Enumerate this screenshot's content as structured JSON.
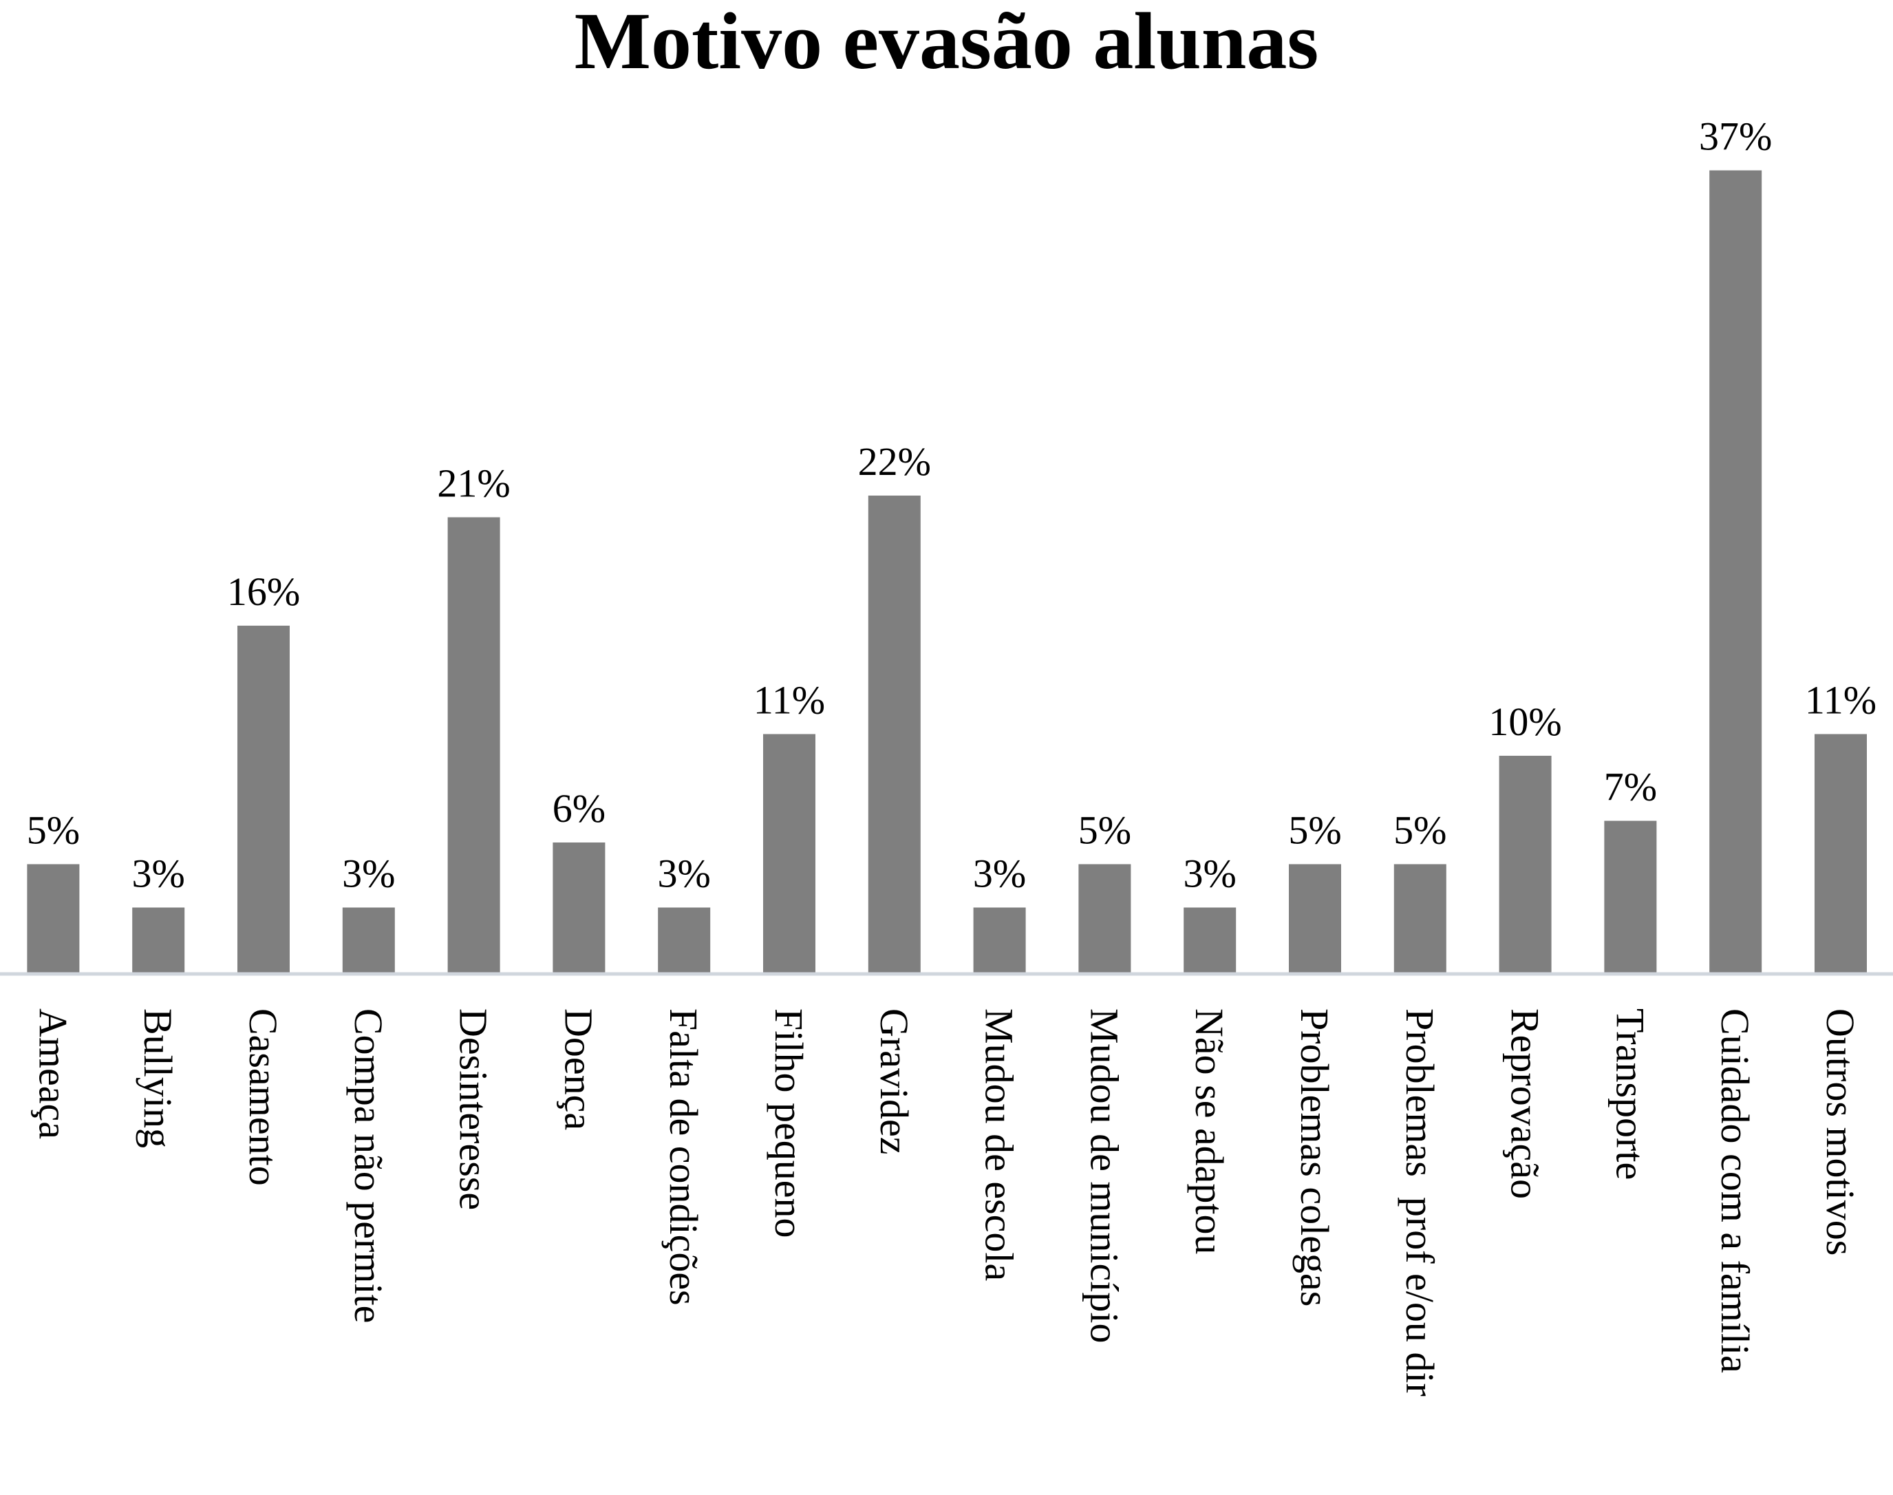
{
  "chart_data": {
    "type": "bar",
    "title": "Motivo evasão alunas",
    "xlabel": "",
    "ylabel": "",
    "categories": [
      "Ameaça",
      "Bullying",
      "Casamento",
      "Compa não permite",
      "Desinteresse",
      "Doença",
      "Falta de condições",
      "Filho pequeno",
      "Gravidez",
      "Mudou de escola",
      "Mudou de município",
      "Não se adaptou",
      "Problemas colegas",
      "Problemas  prof e/ou dir",
      "Reprovação",
      "Transporte",
      "Cuidado com a família",
      "Outros motivos"
    ],
    "values": [
      5,
      3,
      16,
      3,
      21,
      6,
      3,
      11,
      22,
      3,
      5,
      3,
      5,
      5,
      10,
      7,
      37,
      11
    ],
    "data_labels": [
      "5%",
      "3%",
      "16%",
      "3%",
      "21%",
      "6%",
      "3%",
      "11%",
      "22%",
      "3%",
      "5%",
      "3%",
      "5%",
      "5%",
      "10%",
      "7%",
      "37%",
      "11%"
    ],
    "unit": "%",
    "ylim": [
      0,
      37
    ],
    "grid": false,
    "legend": "none",
    "bar_color": "#7f7f7f",
    "axis_color": "#d0d6dd"
  }
}
